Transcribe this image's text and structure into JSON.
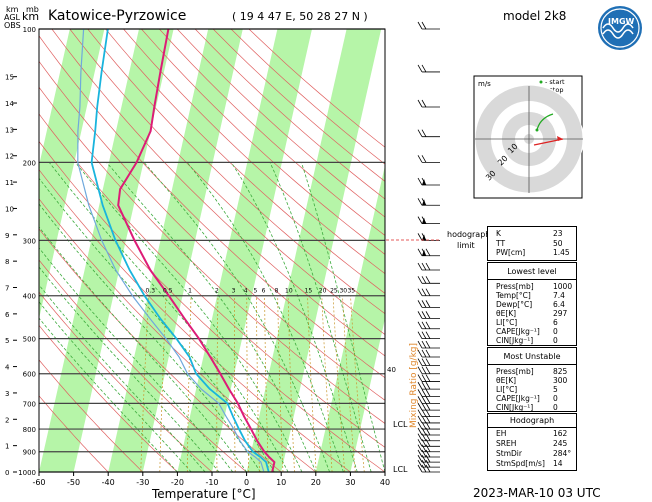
{
  "header": {
    "station": "Katowice-Pyrzowice",
    "coords": "( 19 4 47 E,  50 28 27 N )",
    "model": "model 2k8",
    "datetime": "2023-MAR-10    03 UTC",
    "unit_km": "km",
    "unit_mb": "mb",
    "agl": "AGL",
    "obs": "OBS"
  },
  "axes": {
    "xlabel": "Temperature [°C]",
    "x_ticks": [
      "-60",
      "-50",
      "-40",
      "-30",
      "-20",
      "-10",
      "0",
      "10",
      "20",
      "30",
      "40"
    ],
    "p_ticks": [
      "100",
      "200",
      "300",
      "400",
      "500",
      "600",
      "700",
      "800",
      "900",
      "1000"
    ],
    "km_ticks": [
      "0",
      "1",
      "2",
      "3",
      "4",
      "5",
      "6",
      "7",
      "8",
      "9",
      "10",
      "11",
      "12",
      "13",
      "14",
      "15"
    ],
    "mixing_ratio_label": "Mixing Ratio [g/kg]",
    "mixing_ratio_ticks": [
      "0.3",
      "0.5",
      "1",
      "2",
      "3",
      "4",
      "5",
      "6",
      "8",
      "10",
      "15",
      "20",
      "25",
      "30",
      "35"
    ],
    "right_marker_40": "40",
    "lcl_label": "LCL",
    "hodo_limit_label_1": "hodograph",
    "hodo_limit_label_2": "limit"
  },
  "hodograph": {
    "unit": "m/s",
    "start_label": "- start",
    "stop_label": "- stop",
    "ring_labels": [
      "10",
      "20",
      "30"
    ],
    "start_color": "#22aa22",
    "stop_color": "#dd2222"
  },
  "indices": {
    "k_label": "K",
    "k_value": "23",
    "tt_label": "TT",
    "tt_value": "50",
    "pw_label": "PW[cm]",
    "pw_value": "1.45"
  },
  "lowest_level": {
    "title": "Lowest level",
    "rows": [
      {
        "k": "Press[mb]",
        "v": "1000"
      },
      {
        "k": "Temp[°C]",
        "v": "7.4"
      },
      {
        "k": "Dewp[°C]",
        "v": "6.4"
      },
      {
        "k": "θE[K]",
        "v": "297"
      },
      {
        "k": "LI[°C]",
        "v": "6"
      },
      {
        "k": "CAPE[Jkg⁻¹]",
        "v": "0"
      },
      {
        "k": "CIN[Jkg⁻¹]",
        "v": "0"
      }
    ]
  },
  "most_unstable": {
    "title": "Most Unstable",
    "rows": [
      {
        "k": "Press[mb]",
        "v": "825"
      },
      {
        "k": "θE[K]",
        "v": "300"
      },
      {
        "k": "LI[°C]",
        "v": "5"
      },
      {
        "k": "CAPE[Jkg⁻¹]",
        "v": "0"
      },
      {
        "k": "CIN[Jkg⁻¹]",
        "v": "0"
      }
    ]
  },
  "hodograph_params": {
    "title": "Hodograph",
    "rows": [
      {
        "k": "EH",
        "v": "162"
      },
      {
        "k": "SREH",
        "v": "245"
      },
      {
        "k": "StmDir",
        "v": "284°"
      },
      {
        "k": "StmSpd[m/s]",
        "v": "14"
      }
    ]
  },
  "colors": {
    "temperature": "#dd1c77",
    "dewpoint": "#19b4dd",
    "dewpoint2": "#6fa8dc",
    "isotherm_band": "#b6f5a8",
    "dry_adiabat": "#e06060",
    "moist_adiabat": "#3caa3c",
    "mixing_ratio": "#c8962c",
    "isobar": "#444444"
  },
  "chart_data": {
    "type": "line",
    "title": "Katowice-Pyrzowice",
    "xlabel": "Temperature [°C]",
    "ylabel": "mb",
    "xlim": [
      -60,
      40
    ],
    "ylim": [
      1000,
      100
    ],
    "y_scale": "log",
    "series": [
      {
        "name": "temperature",
        "pressure": [
          1000,
          950,
          925,
          900,
          850,
          800,
          750,
          700,
          650,
          600,
          550,
          500,
          450,
          400,
          350,
          300,
          250,
          230,
          200,
          170,
          150,
          125,
          100
        ],
        "values": [
          7.4,
          7.4,
          5.5,
          3.8,
          1.0,
          -1.5,
          -4.3,
          -7.0,
          -10.5,
          -14.0,
          -18.0,
          -22.5,
          -28.0,
          -34.0,
          -41.0,
          -47.5,
          -54.5,
          -55.0,
          -52.0,
          -50.0,
          -50.5,
          -51.0,
          -51.5
        ]
      },
      {
        "name": "dewpoint",
        "pressure": [
          1000,
          950,
          925,
          900,
          850,
          800,
          750,
          700,
          650,
          600,
          550,
          500,
          450,
          400,
          350,
          300,
          250,
          200,
          170,
          150,
          125,
          100
        ],
        "values": [
          6.4,
          5.0,
          3.0,
          0.5,
          -2.5,
          -5.0,
          -7.5,
          -10.0,
          -16.0,
          -21.0,
          -24.0,
          -29.0,
          -35.0,
          -41.0,
          -47.0,
          -53.0,
          -59.0,
          -65.0,
          -66.0,
          -67.0,
          -68.0,
          -69.0
        ]
      },
      {
        "name": "dewpoint2",
        "pressure": [
          1000,
          950,
          925,
          900,
          850,
          800,
          750,
          700,
          650,
          600,
          550,
          500,
          450,
          400,
          350,
          300,
          250,
          200,
          170,
          150,
          125,
          100
        ],
        "values": [
          5.0,
          3.5,
          1.5,
          -1.0,
          -4.0,
          -6.5,
          -9.5,
          -12.5,
          -18.5,
          -23.5,
          -27.0,
          -32.0,
          -38.0,
          -44.5,
          -51.0,
          -57.0,
          -63.0,
          -69.0,
          -71.0,
          -72.0,
          -74.0,
          -76.0
        ]
      }
    ]
  }
}
